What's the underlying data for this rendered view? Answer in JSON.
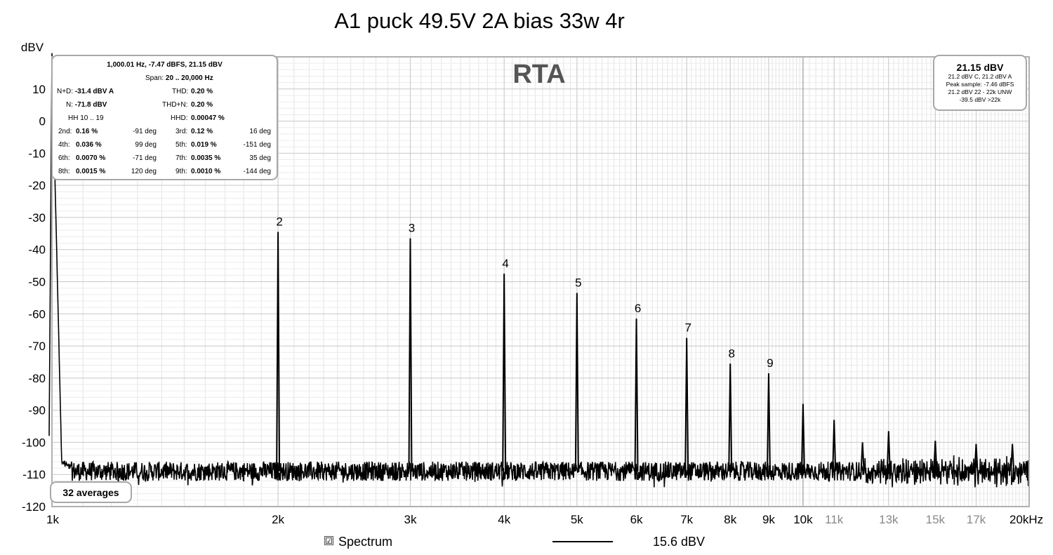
{
  "title": "A1 puck 49.5V 2A bias 33w 4r",
  "chart_data": {
    "type": "line",
    "title": "A1 puck 49.5V 2A bias 33w 4r",
    "watermark": "RTA",
    "ylabel": "dBV",
    "xlabel": "",
    "x_scale": "log",
    "xlim": [
      1000,
      20000
    ],
    "ylim": [
      -120,
      20
    ],
    "y_ticks": [
      10,
      0,
      -10,
      -20,
      -30,
      -40,
      -50,
      -60,
      -70,
      -80,
      -90,
      -100,
      -110,
      -120
    ],
    "x_ticks": [
      {
        "value": 1000,
        "label": "1k",
        "major": true
      },
      {
        "value": 2000,
        "label": "2k",
        "major": true
      },
      {
        "value": 3000,
        "label": "3k",
        "major": true
      },
      {
        "value": 4000,
        "label": "4k",
        "major": true
      },
      {
        "value": 5000,
        "label": "5k",
        "major": true
      },
      {
        "value": 6000,
        "label": "6k",
        "major": true
      },
      {
        "value": 7000,
        "label": "7k",
        "major": true
      },
      {
        "value": 8000,
        "label": "8k",
        "major": true
      },
      {
        "value": 9000,
        "label": "9k",
        "major": true
      },
      {
        "value": 10000,
        "label": "10k",
        "major": true
      },
      {
        "value": 11000,
        "label": "11k",
        "major": false
      },
      {
        "value": 13000,
        "label": "13k",
        "major": false
      },
      {
        "value": 15000,
        "label": "15k",
        "major": false
      },
      {
        "value": 17000,
        "label": "17k",
        "major": false
      },
      {
        "value": 20000,
        "label": "20kHz",
        "major": true
      }
    ],
    "grid": true,
    "noise_floor_dbv": -109,
    "fundamental": {
      "freq": 1000,
      "dbv": 21.15
    },
    "peaks": [
      {
        "freq": 2000,
        "dbv": -34.5,
        "label": "2"
      },
      {
        "freq": 3000,
        "dbv": -36.5,
        "label": "3"
      },
      {
        "freq": 4000,
        "dbv": -47.5,
        "label": "4"
      },
      {
        "freq": 5000,
        "dbv": -53.5,
        "label": "5"
      },
      {
        "freq": 6000,
        "dbv": -61.5,
        "label": "6"
      },
      {
        "freq": 7000,
        "dbv": -67.5,
        "label": "7"
      },
      {
        "freq": 8000,
        "dbv": -75.5,
        "label": "8"
      },
      {
        "freq": 9000,
        "dbv": -78.5,
        "label": "9"
      },
      {
        "freq": 10000,
        "dbv": -88,
        "label": ""
      },
      {
        "freq": 11000,
        "dbv": -93,
        "label": ""
      },
      {
        "freq": 12000,
        "dbv": -100,
        "label": ""
      },
      {
        "freq": 13000,
        "dbv": -96.5,
        "label": ""
      },
      {
        "freq": 15000,
        "dbv": -99.5,
        "label": ""
      },
      {
        "freq": 17000,
        "dbv": -100.5,
        "label": ""
      },
      {
        "freq": 19000,
        "dbv": -100.5,
        "label": ""
      }
    ],
    "series": [
      {
        "name": "Spectrum",
        "level": "15.6 dBV",
        "color": "#000000"
      }
    ]
  },
  "stats": {
    "header": "1,000.01 Hz, -7.47 dBFS, 21.15 dBV",
    "span_label": "Span:",
    "span_value": "20 .. 20,000 Hz",
    "nd_label": "N+D:",
    "nd_value": "-31.4 dBV A",
    "thd_label": "THD:",
    "thd_value": "0.20 %",
    "n_label": "N:",
    "n_value": "-71.8 dBV",
    "thdn_label": "THD+N:",
    "thdn_value": "0.20 %",
    "hh_label": "HH 10 .. 19",
    "hhd_label": "HHD:",
    "hhd_value": "0.00047 %",
    "harmonics": [
      {
        "label": "2nd:",
        "pct": "0.16 %",
        "deg": "-91 deg"
      },
      {
        "label": "3rd:",
        "pct": "0.12 %",
        "deg": "16 deg"
      },
      {
        "label": "4th:",
        "pct": "0.036 %",
        "deg": "99 deg"
      },
      {
        "label": "5th:",
        "pct": "0.019 %",
        "deg": "-151 deg"
      },
      {
        "label": "6th:",
        "pct": "0.0070 %",
        "deg": "-71 deg"
      },
      {
        "label": "7th:",
        "pct": "0.0035 %",
        "deg": "35 deg"
      },
      {
        "label": "8th:",
        "pct": "0.0015 %",
        "deg": "120 deg"
      },
      {
        "label": "9th:",
        "pct": "0.0010 %",
        "deg": "-144 deg"
      }
    ]
  },
  "level_box": {
    "main": "21.15 dBV",
    "line1": "21.2 dBV C, 21.2 dBV A",
    "line2": "Peak sample: -7.46 dBFS",
    "line3": "21.2 dBV 22 - 22k UNW",
    "line4": "-39.5 dBV >22k"
  },
  "averages_label": "32 averages",
  "legend": {
    "checkbox": "☑",
    "label": "Spectrum",
    "value": "15.6 dBV"
  }
}
